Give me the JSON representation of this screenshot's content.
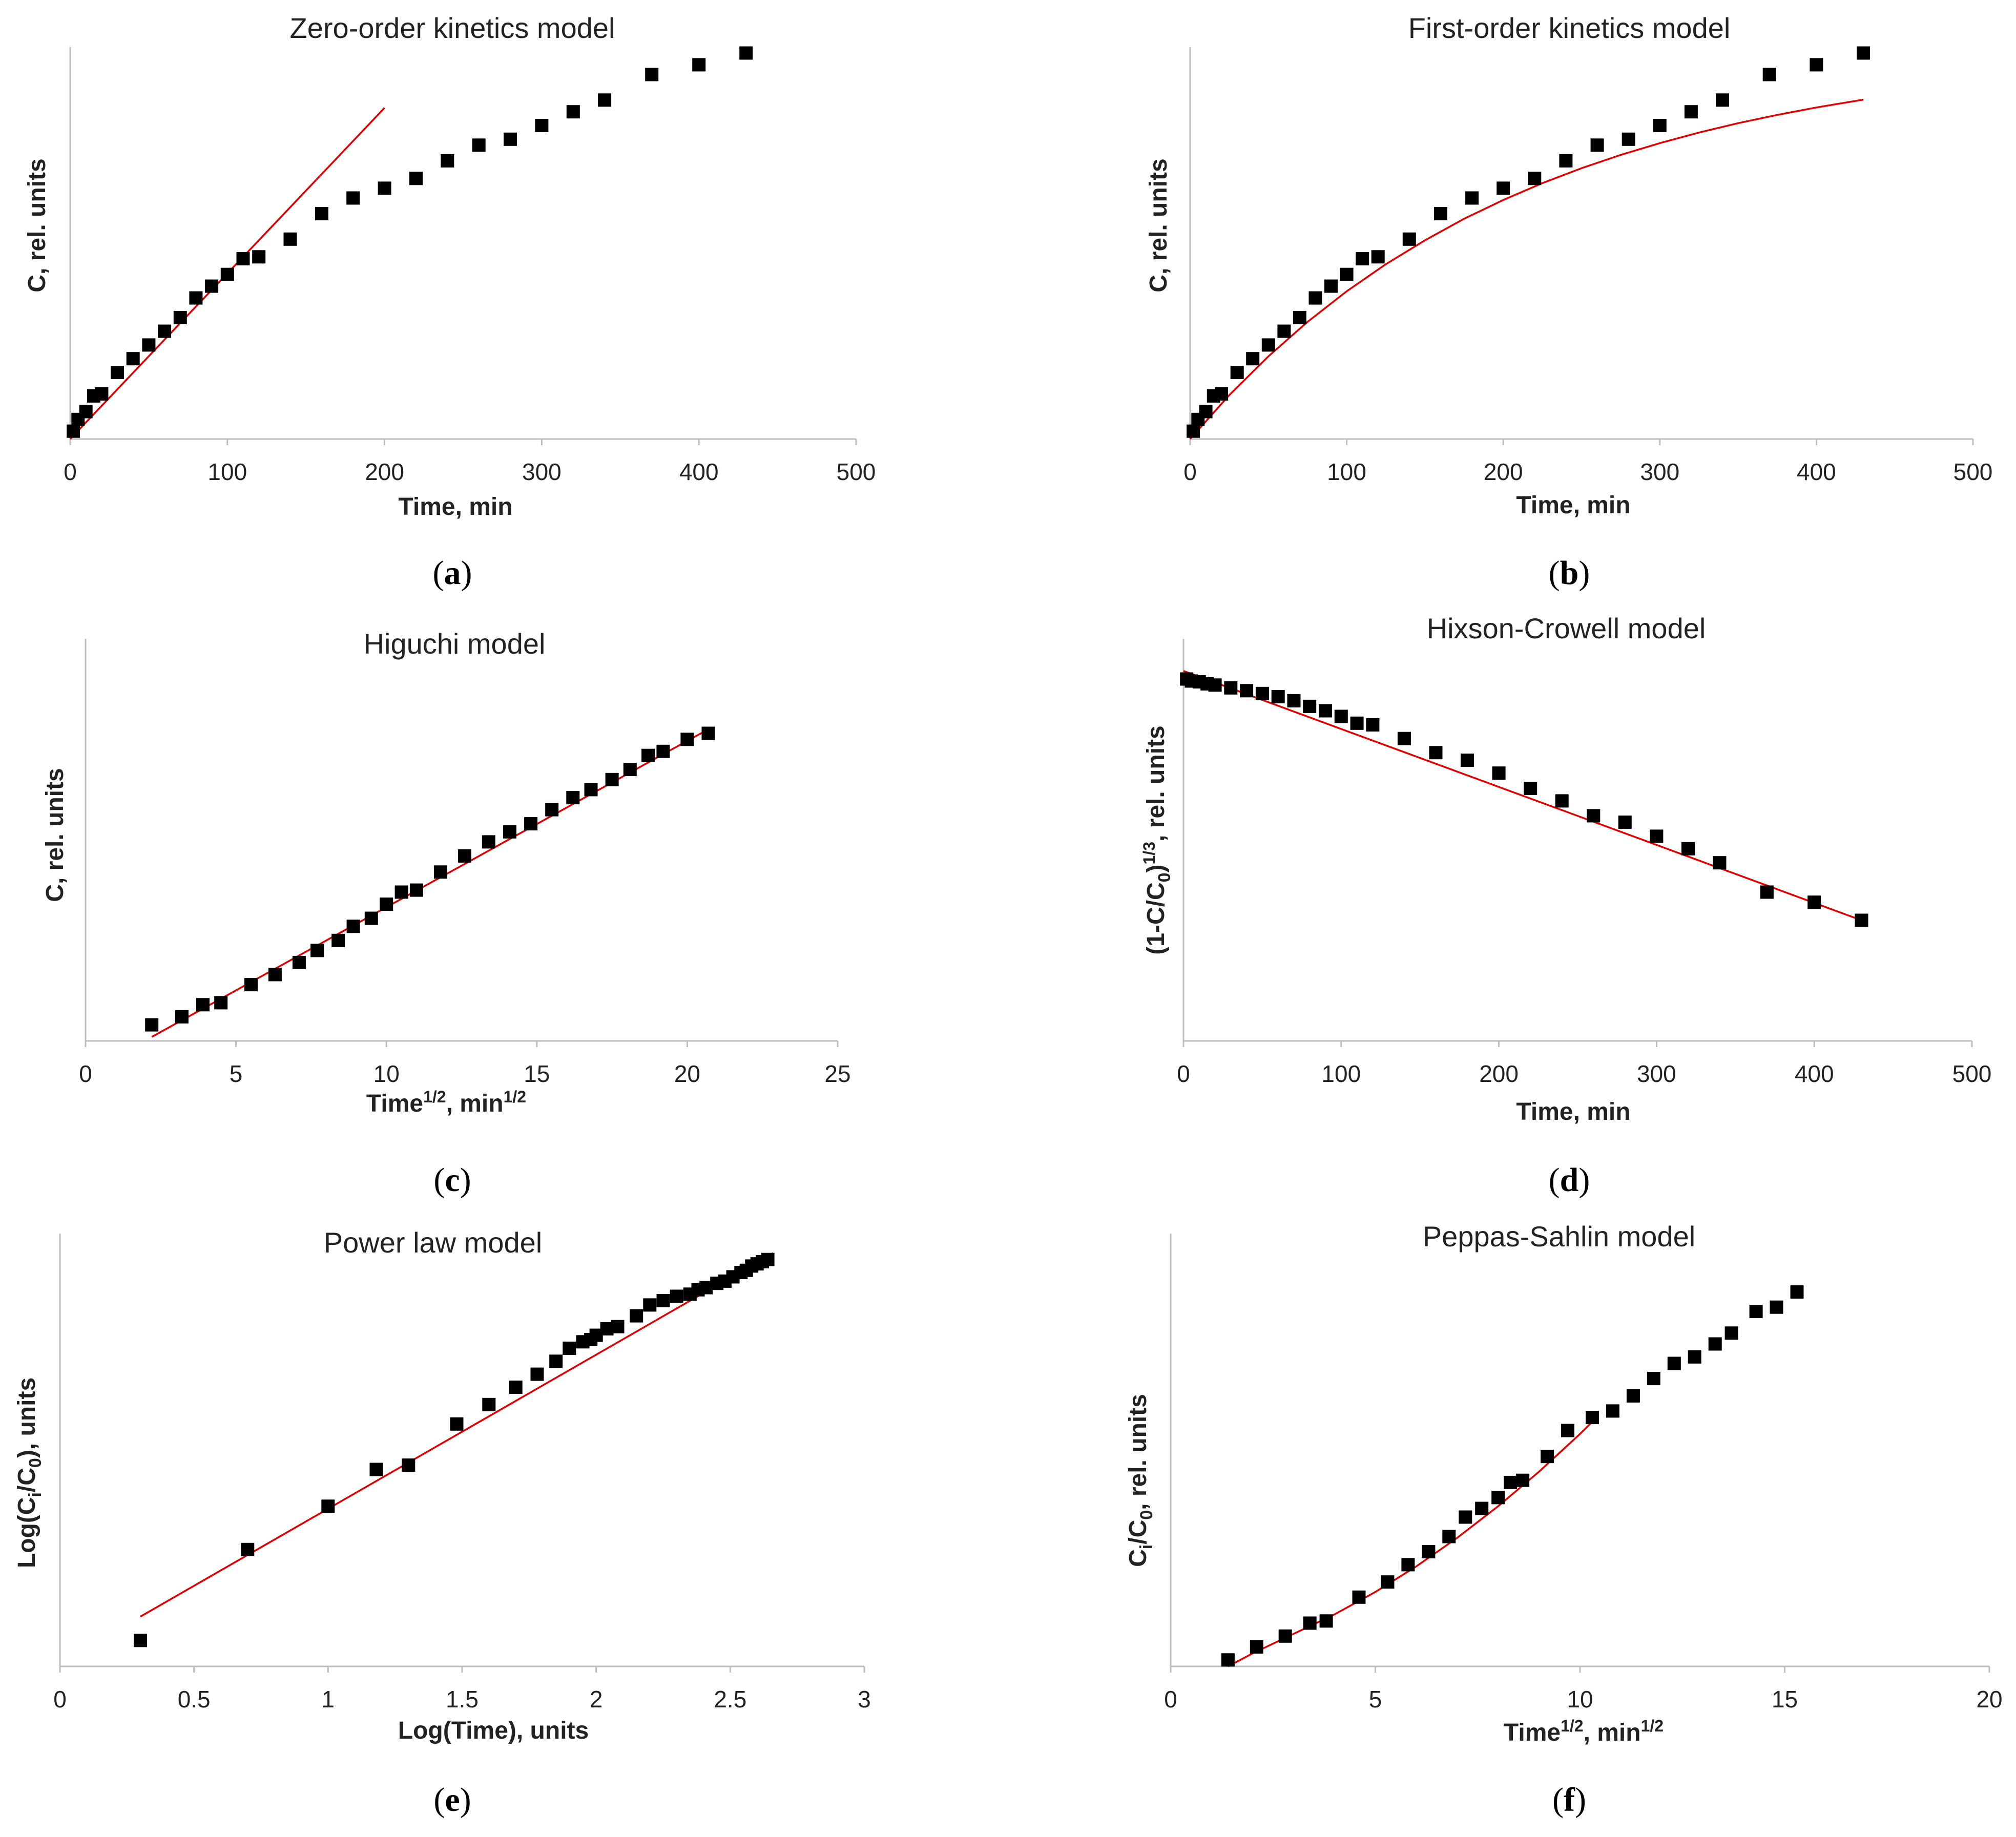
{
  "colors": {
    "points": "#000000",
    "fit": "#e00000",
    "axis": "#bdbdbd"
  },
  "chart_data": [
    {
      "id": "a",
      "type": "scatter",
      "panel_label": "a",
      "title": "Zero-order kinetics model",
      "xlabel": "Time, min",
      "ylabel": "C, rel. units",
      "xlim": [
        0,
        500
      ],
      "xticks": [
        "0",
        "100",
        "200",
        "300",
        "400",
        "500"
      ],
      "ylim": [
        0,
        1.0
      ],
      "y_ticks_shown": false,
      "x": [
        2,
        5,
        10,
        15,
        20,
        30,
        40,
        50,
        60,
        70,
        80,
        90,
        100,
        110,
        120,
        140,
        160,
        180,
        200,
        220,
        240,
        260,
        280,
        300,
        320,
        340,
        370,
        400,
        430
      ],
      "y": [
        0.02,
        0.05,
        0.07,
        0.11,
        0.115,
        0.17,
        0.205,
        0.24,
        0.275,
        0.31,
        0.36,
        0.39,
        0.42,
        0.46,
        0.465,
        0.51,
        0.575,
        0.615,
        0.64,
        0.665,
        0.71,
        0.75,
        0.765,
        0.8,
        0.835,
        0.865,
        0.93,
        0.955,
        0.985
      ],
      "fit": {
        "type": "line",
        "x": [
          0,
          200
        ],
        "y": [
          0.0,
          0.845
        ]
      }
    },
    {
      "id": "b",
      "type": "scatter",
      "panel_label": "b",
      "title": "First-order kinetics model",
      "xlabel": "Time, min",
      "ylabel": "C, rel. units",
      "xlim": [
        0,
        500
      ],
      "xticks": [
        "0",
        "100",
        "200",
        "300",
        "400",
        "500"
      ],
      "ylim": [
        0,
        1.0
      ],
      "y_ticks_shown": false,
      "x": [
        2,
        5,
        10,
        15,
        20,
        30,
        40,
        50,
        60,
        70,
        80,
        90,
        100,
        110,
        120,
        140,
        160,
        180,
        200,
        220,
        240,
        260,
        280,
        300,
        320,
        340,
        370,
        400,
        430
      ],
      "y": [
        0.02,
        0.05,
        0.07,
        0.11,
        0.115,
        0.17,
        0.205,
        0.24,
        0.275,
        0.31,
        0.36,
        0.39,
        0.42,
        0.46,
        0.465,
        0.51,
        0.575,
        0.615,
        0.64,
        0.665,
        0.71,
        0.75,
        0.765,
        0.8,
        0.835,
        0.865,
        0.93,
        0.955,
        0.985
      ],
      "fit": {
        "type": "curve",
        "x": [
          0,
          25,
          50,
          75,
          100,
          125,
          150,
          175,
          200,
          225,
          250,
          275,
          300,
          325,
          350,
          375,
          400,
          430
        ],
        "y": [
          0.0,
          0.112,
          0.211,
          0.299,
          0.377,
          0.446,
          0.507,
          0.562,
          0.61,
          0.653,
          0.691,
          0.725,
          0.755,
          0.782,
          0.806,
          0.827,
          0.846,
          0.866
        ]
      }
    },
    {
      "id": "c",
      "type": "scatter",
      "panel_label": "c",
      "title": "Higuchi model",
      "xlabel": {
        "base": "Time",
        "sup": "1/2",
        "mid": ", min",
        "sup2": "1/2"
      },
      "ylabel": "C, rel. units",
      "xlim": [
        0,
        25
      ],
      "xticks": [
        "0",
        "5",
        "10",
        "15",
        "20",
        "25"
      ],
      "ylim": [
        0,
        1.0
      ],
      "y_ticks_shown": false,
      "x": [
        2.2,
        3.2,
        3.9,
        4.5,
        5.5,
        6.3,
        7.1,
        7.7,
        8.4,
        8.9,
        9.5,
        10.0,
        10.5,
        11.0,
        11.8,
        12.6,
        13.4,
        14.1,
        14.8,
        15.5,
        16.2,
        16.8,
        17.5,
        18.1,
        18.7,
        19.2,
        20.0,
        20.7
      ],
      "y": [
        0.04,
        0.06,
        0.09,
        0.095,
        0.14,
        0.165,
        0.195,
        0.225,
        0.25,
        0.285,
        0.305,
        0.34,
        0.37,
        0.375,
        0.42,
        0.46,
        0.495,
        0.52,
        0.54,
        0.575,
        0.605,
        0.625,
        0.65,
        0.675,
        0.71,
        0.72,
        0.75,
        0.765
      ],
      "fit": {
        "type": "line",
        "x": [
          2.2,
          20.7
        ],
        "y": [
          0.01,
          0.775
        ]
      }
    },
    {
      "id": "d",
      "type": "scatter",
      "panel_label": "d",
      "title": "Hixson-Crowell model",
      "xlabel": "Time, min",
      "ylabel": {
        "pre": "(1-C/C",
        "sub": "0",
        "mid": ")",
        "sup": "1/3",
        "post": ", rel. units"
      },
      "xlim": [
        0,
        500
      ],
      "xticks": [
        "0",
        "100",
        "200",
        "300",
        "400",
        "500"
      ],
      "ylim": [
        0,
        1.0
      ],
      "y_ticks_shown": false,
      "x": [
        2,
        5,
        10,
        15,
        20,
        30,
        40,
        50,
        60,
        70,
        80,
        90,
        100,
        110,
        120,
        140,
        160,
        180,
        200,
        220,
        240,
        260,
        280,
        300,
        320,
        340,
        370,
        400,
        430
      ],
      "y": [
        0.9,
        0.895,
        0.893,
        0.888,
        0.885,
        0.878,
        0.871,
        0.864,
        0.856,
        0.846,
        0.832,
        0.821,
        0.807,
        0.79,
        0.786,
        0.752,
        0.717,
        0.698,
        0.666,
        0.628,
        0.597,
        0.56,
        0.544,
        0.509,
        0.478,
        0.443,
        0.37,
        0.345,
        0.3
      ],
      "fit": {
        "type": "line",
        "x": [
          0,
          430
        ],
        "y": [
          0.92,
          0.3
        ]
      }
    },
    {
      "id": "e",
      "type": "scatter",
      "panel_label": "e",
      "title": "Power law model",
      "xlabel": "Log(Time), units",
      "ylabel": {
        "pre": "Log(C",
        "sub": "i",
        "mid": "/C",
        "sub2": "0",
        "post": "), units"
      },
      "xlim": [
        0,
        3
      ],
      "xticks": [
        "0",
        "0.5",
        "1",
        "1.5",
        "2",
        "2.5",
        "3"
      ],
      "ylim": [
        0,
        1.0
      ],
      "y_ticks_shown": false,
      "x": [
        0.3,
        0.7,
        1.0,
        1.18,
        1.3,
        1.48,
        1.6,
        1.7,
        1.78,
        1.85,
        1.9,
        1.95,
        1.98,
        2.0,
        2.04,
        2.08,
        2.15,
        2.2,
        2.25,
        2.3,
        2.35,
        2.38,
        2.41,
        2.45,
        2.48,
        2.51,
        2.54,
        2.56,
        2.58,
        2.6,
        2.62,
        2.64
      ],
      "y": [
        0.06,
        0.27,
        0.37,
        0.455,
        0.465,
        0.56,
        0.605,
        0.645,
        0.675,
        0.705,
        0.735,
        0.75,
        0.755,
        0.765,
        0.78,
        0.785,
        0.81,
        0.835,
        0.845,
        0.855,
        0.86,
        0.87,
        0.875,
        0.885,
        0.89,
        0.9,
        0.91,
        0.915,
        0.925,
        0.93,
        0.935,
        0.94
      ],
      "fit": {
        "type": "line",
        "x": [
          0.3,
          2.66
        ],
        "y": [
          0.115,
          0.955
        ]
      }
    },
    {
      "id": "f",
      "type": "scatter",
      "panel_label": "f",
      "title": "Peppas-Sahlin model",
      "xlabel": {
        "base": "Time",
        "sup": "1/2",
        "mid": ", min",
        "sup2": "1/2"
      },
      "ylabel": {
        "pre": "C",
        "sub": "i",
        "mid": "/C",
        "sub2": "0",
        "post": ", rel. units"
      },
      "xlim": [
        0,
        20
      ],
      "xticks": [
        "0",
        "5",
        "10",
        "15",
        "20"
      ],
      "ylim": [
        0,
        1.0
      ],
      "y_ticks_shown": false,
      "x": [
        1.4,
        2.1,
        2.8,
        3.4,
        3.8,
        4.6,
        5.3,
        5.8,
        6.3,
        6.8,
        7.2,
        7.6,
        8.0,
        8.3,
        8.6,
        9.2,
        9.7,
        10.3,
        10.8,
        11.3,
        11.8,
        12.3,
        12.8,
        13.3,
        13.7,
        14.3,
        14.8,
        15.3
      ],
      "y": [
        0.015,
        0.045,
        0.07,
        0.1,
        0.105,
        0.16,
        0.195,
        0.235,
        0.265,
        0.3,
        0.345,
        0.365,
        0.39,
        0.425,
        0.43,
        0.485,
        0.545,
        0.575,
        0.59,
        0.625,
        0.665,
        0.7,
        0.715,
        0.745,
        0.77,
        0.82,
        0.83,
        0.865
      ],
      "fit": {
        "type": "curve",
        "x": [
          1.4,
          2.0,
          3.0,
          4.0,
          5.0,
          6.0,
          7.0,
          8.0,
          9.0,
          10.0,
          10.3
        ],
        "y": [
          0.0,
          0.03,
          0.075,
          0.12,
          0.172,
          0.231,
          0.297,
          0.37,
          0.45,
          0.537,
          0.565
        ]
      }
    }
  ]
}
